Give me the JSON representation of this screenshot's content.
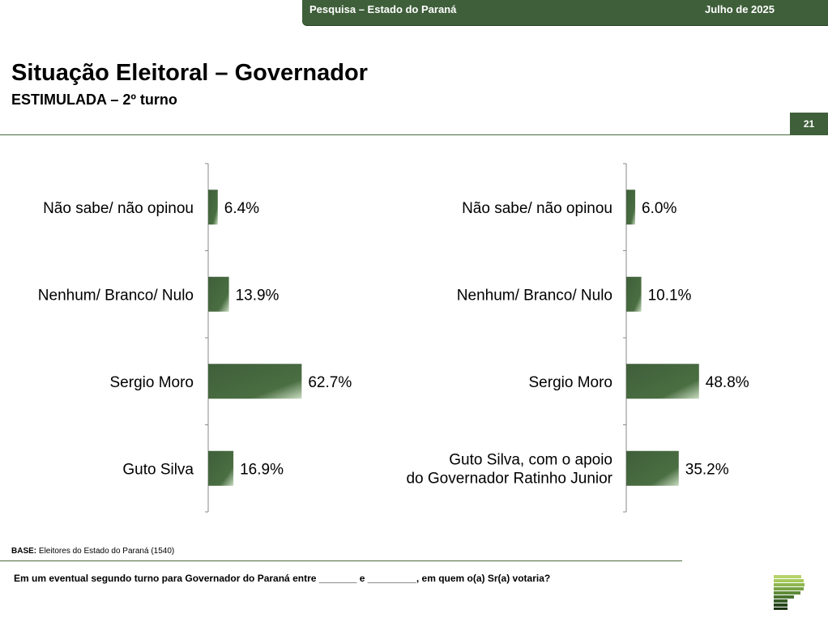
{
  "header": {
    "left_text": "Pesquisa – Estado do Paraná",
    "right_text": "Julho de 2025",
    "bar_color": "#3f5f3a"
  },
  "page": {
    "title": "Situação Eleitoral – Governador",
    "subtitle": "ESTIMULADA – 2º turno",
    "page_number": "21"
  },
  "chart_data": [
    {
      "type": "bar",
      "orientation": "horizontal",
      "categories": [
        "Não sabe/ não opinou",
        "Nenhum/ Branco/ Nulo",
        "Sergio Moro",
        "Guto Silva"
      ],
      "values": [
        6.4,
        13.9,
        62.7,
        16.9
      ],
      "data_labels": [
        "6.4%",
        "13.9%",
        "62.7%",
        "16.9%"
      ],
      "xlim": [
        0,
        100
      ],
      "grid": false,
      "bar_color": "#3f5f3a"
    },
    {
      "type": "bar",
      "orientation": "horizontal",
      "categories": [
        "Não sabe/ não opinou",
        "Nenhum/ Branco/ Nulo",
        "Sergio Moro",
        "Guto Silva, com o apoio do Governador Ratinho Junior"
      ],
      "values": [
        6.0,
        10.1,
        48.8,
        35.2
      ],
      "data_labels": [
        "6.0%",
        "10.1%",
        "48.8%",
        "35.2%"
      ],
      "xlim": [
        0,
        100
      ],
      "grid": false,
      "bar_color": "#3f5f3a"
    }
  ],
  "footer": {
    "base_label": "BASE:",
    "base_text": "Eleitores do Estado do Paraná (1540)",
    "question": "Em um eventual segundo turno para Governador do Paraná entre _______ e _________, em quem o(a) Sr(a) votaria?"
  },
  "logo": {
    "icon": "striped-p-logo-icon"
  }
}
